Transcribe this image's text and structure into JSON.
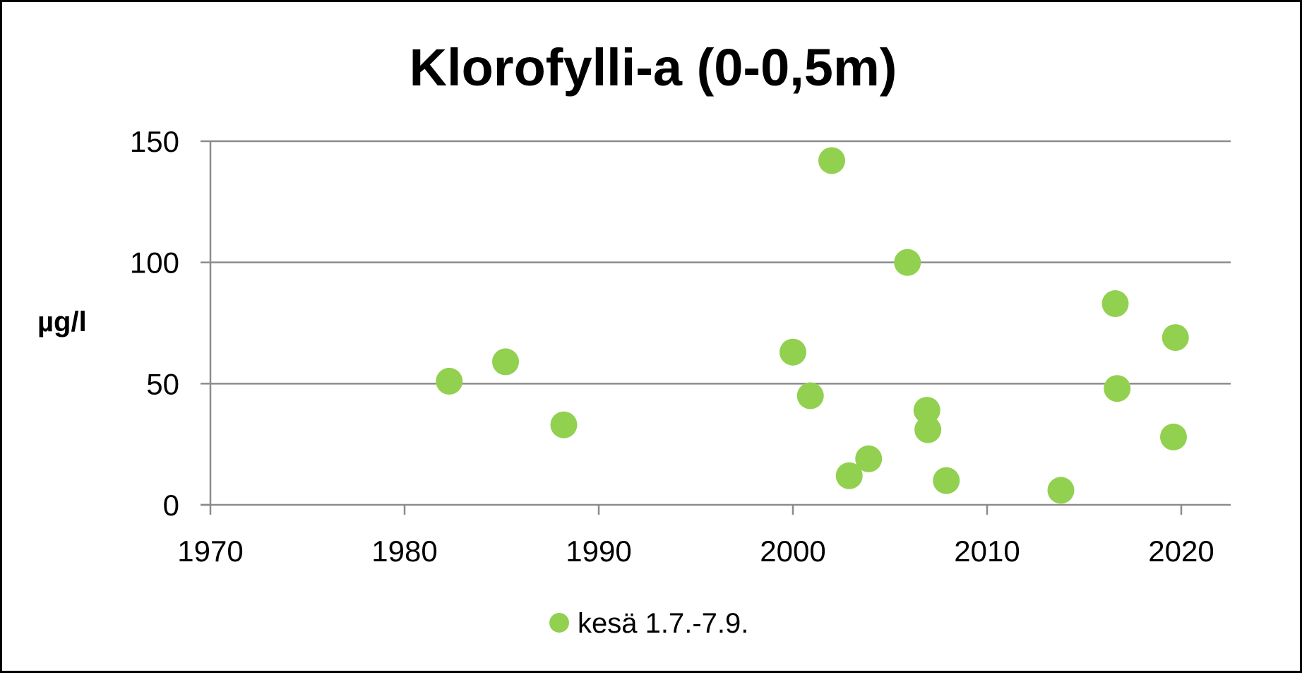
{
  "chart_data": {
    "type": "scatter",
    "title": "Klorofylli-a (0-0,5m)",
    "xlabel": "",
    "ylabel": "µg/l",
    "xlim": [
      1970,
      2023
    ],
    "ylim": [
      0,
      150
    ],
    "x_ticks": [
      1970,
      1980,
      1990,
      2000,
      2010,
      2020
    ],
    "y_ticks": [
      0,
      50,
      100,
      150
    ],
    "grid": true,
    "legend_position": "bottom",
    "series": [
      {
        "name": "kesä 1.7.-7.9.",
        "color": "#92d050",
        "marker": "circle",
        "points": [
          {
            "x": 1982.3,
            "y": 51
          },
          {
            "x": 1985.2,
            "y": 59
          },
          {
            "x": 1988.2,
            "y": 33
          },
          {
            "x": 2000.0,
            "y": 63
          },
          {
            "x": 2000.9,
            "y": 45
          },
          {
            "x": 2002.0,
            "y": 142
          },
          {
            "x": 2002.9,
            "y": 12
          },
          {
            "x": 2003.9,
            "y": 19
          },
          {
            "x": 2005.9,
            "y": 100
          },
          {
            "x": 2006.9,
            "y": 39
          },
          {
            "x": 2006.95,
            "y": 31
          },
          {
            "x": 2007.9,
            "y": 10
          },
          {
            "x": 2013.8,
            "y": 6
          },
          {
            "x": 2016.6,
            "y": 83
          },
          {
            "x": 2016.7,
            "y": 48
          },
          {
            "x": 2019.6,
            "y": 28
          },
          {
            "x": 2019.7,
            "y": 69
          }
        ]
      }
    ]
  }
}
